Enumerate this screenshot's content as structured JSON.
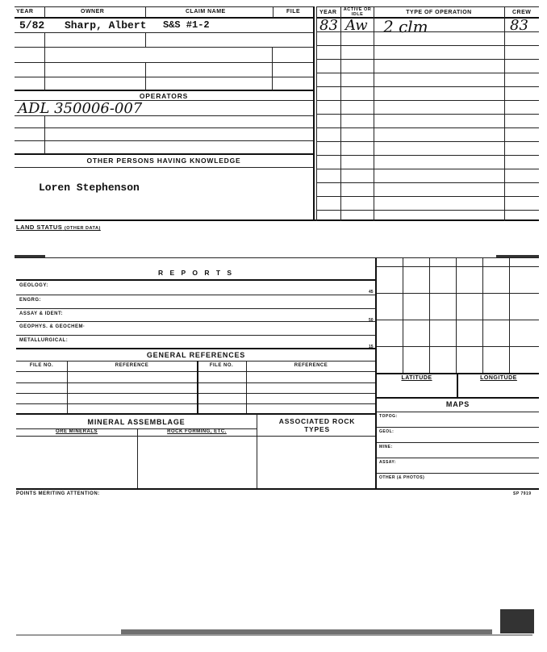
{
  "owners_table": {
    "headers": {
      "year": "YEAR",
      "owner": "OWNER",
      "claim_name": "CLAIM NAME",
      "file": "FILE"
    },
    "rows": [
      {
        "year": "5/82",
        "owner": "Sharp, Albert",
        "claim_name": "S&S #1-2",
        "file": ""
      }
    ]
  },
  "operators": {
    "header": "OPERATORS",
    "entries": [
      "ADL 350006-007"
    ]
  },
  "other_persons": {
    "header": "OTHER PERSONS HAVING KNOWLEDGE",
    "entries": [
      "Loren Stephenson"
    ]
  },
  "operations_table": {
    "headers": {
      "year": "YEAR",
      "active": "ACTIVE OR IDLE",
      "type": "TYPE OF OPERATION",
      "crew": "CREW"
    },
    "rows": [
      {
        "year": "83",
        "active": "Aw",
        "type": "2 clm",
        "crew": "83"
      }
    ]
  },
  "land_status": {
    "label": "LAND STATUS",
    "sub": "(OTHER DATA)"
  },
  "reports": {
    "header": "R E P O R T S",
    "rows": [
      {
        "label": "GEOLOGY:",
        "code": "45"
      },
      {
        "label": "ENGRG:",
        "code": ""
      },
      {
        "label": "ASSAY & IDENT:",
        "code": "50"
      },
      {
        "label": "GEOPHYS. & GEOCHEM·",
        "code": ""
      },
      {
        "label": "METALLURGICAL:",
        "code": "15"
      }
    ]
  },
  "general_references": {
    "header": "GENERAL  REFERENCES",
    "col_file": "FILE NO.",
    "col_ref": "REFERENCE"
  },
  "mineral_assemblage": {
    "header": "MINERAL  ASSEMBLAGE",
    "ore": "ORE MINERALS",
    "rock": "ROCK FORMING, ETC.",
    "associated": "ASSOCIATED ROCK TYPES"
  },
  "location": {
    "latitude": "LATITUDE",
    "longitude": "LONGITUDE"
  },
  "maps": {
    "header": "MAPS",
    "rows": [
      "TOPOG:",
      "GEOL:",
      "MINE:",
      "ASSAY:",
      "OTHER (& PHOTOS)"
    ]
  },
  "form_number": "SP 7919",
  "points_meriting": "POINTS MERITING ATTENTION:"
}
